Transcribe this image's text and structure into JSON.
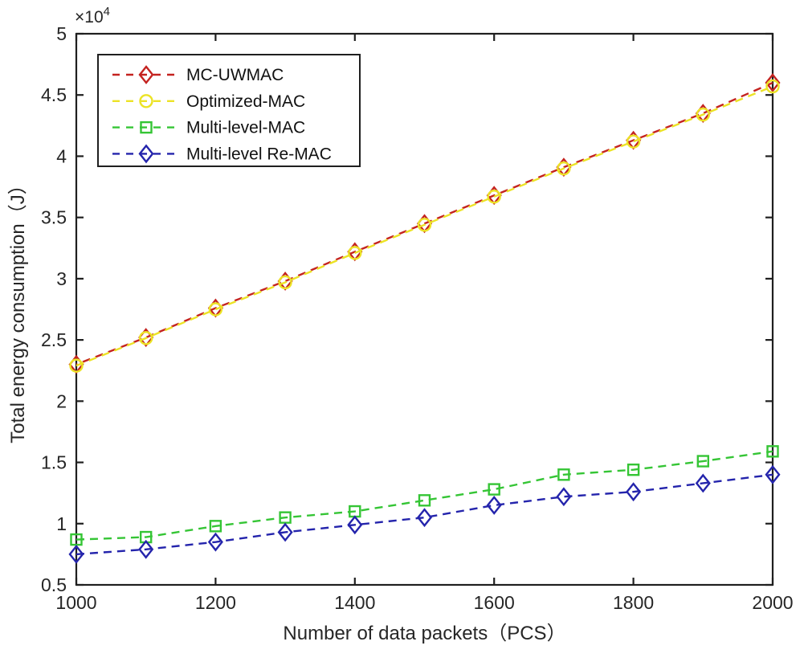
{
  "figure": {
    "background": "#ffffff",
    "axis_color": "#1f1f1f",
    "text_color": "#262626",
    "legend_border_color": "#1f1f1f"
  },
  "chart_data": {
    "type": "line",
    "title": "",
    "xlabel": "Number of data packets（PCS）",
    "ylabel": "Total energy consumption（J）",
    "y_exponent_label": {
      "base": "×10",
      "exp": "4"
    },
    "xlim": [
      1000,
      2000
    ],
    "ylim": [
      5000,
      50000
    ],
    "grid": false,
    "legend": {
      "position": "upper-left"
    },
    "x_ticks": [
      1000,
      1200,
      1400,
      1600,
      1800,
      2000
    ],
    "x_tick_labels": [
      "1000",
      "1200",
      "1400",
      "1600",
      "1800",
      "2000"
    ],
    "y_ticks": [
      5000,
      10000,
      15000,
      20000,
      25000,
      30000,
      35000,
      40000,
      45000,
      50000
    ],
    "y_tick_labels": [
      "0.5",
      "1",
      "1.5",
      "2",
      "2.5",
      "3",
      "3.5",
      "4",
      "4.5",
      "5"
    ],
    "x": [
      1000,
      1100,
      1200,
      1300,
      1400,
      1500,
      1600,
      1700,
      1800,
      1900,
      2000
    ],
    "series": [
      {
        "name": "MC-UWMAC",
        "color": "#c42320",
        "marker": "diamond",
        "line": "dashed",
        "values": [
          23000,
          25200,
          27600,
          29800,
          32200,
          34500,
          36800,
          39100,
          41300,
          43500,
          46000
        ]
      },
      {
        "name": "Optimized-MAC",
        "color": "#ece326",
        "marker": "circle",
        "line": "dashed",
        "values": [
          22900,
          25150,
          27500,
          29700,
          32100,
          34400,
          36700,
          39000,
          41200,
          43400,
          45700
        ]
      },
      {
        "name": "Multi-level-MAC",
        "color": "#35c535",
        "marker": "square",
        "line": "dashed",
        "values": [
          8700,
          8900,
          9800,
          10500,
          11000,
          11900,
          12800,
          14000,
          14400,
          15100,
          15900
        ]
      },
      {
        "name": "Multi-level Re-MAC",
        "color": "#2424ac",
        "marker": "diamond",
        "line": "dashed",
        "values": [
          7500,
          7900,
          8500,
          9300,
          9900,
          10500,
          11500,
          12200,
          12600,
          13300,
          14000
        ]
      }
    ]
  }
}
